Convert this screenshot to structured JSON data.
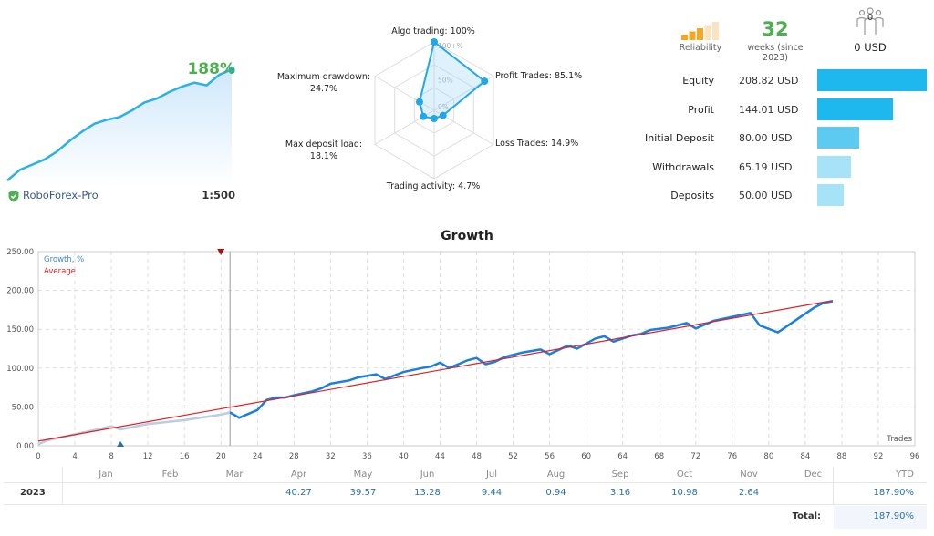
{
  "summary": {
    "growth_pct": "188%",
    "broker": "RoboForex-Pro",
    "leverage": "1:500",
    "sparkline": [
      0,
      8,
      12,
      16,
      22,
      30,
      37,
      43,
      46,
      48,
      53,
      59,
      62,
      67,
      71,
      74,
      72,
      80,
      84
    ]
  },
  "radar": {
    "ring_labels": [
      "100+%",
      "50%",
      "0%"
    ],
    "axes": [
      {
        "label": "Algo trading: 100%",
        "value": 100
      },
      {
        "label": "Profit Trades: 85.1%",
        "value": 85.1
      },
      {
        "label": "Loss Trades: 14.9%",
        "value": 14.9
      },
      {
        "label": "Trading activity: 4.7%",
        "value": 4.7
      },
      {
        "label_line1": "Max deposit load:",
        "label_line2": "18.1%",
        "value": 18.1
      },
      {
        "label_line1": "Maximum drawdown:",
        "label_line2": "24.7%",
        "value": 24.7
      }
    ]
  },
  "stats": {
    "reliability_label": "Reliability",
    "reliability_level": 2,
    "weeks": "32",
    "weeks_label": "weeks (since 2023)",
    "subscribers": "0",
    "subscribers_funds": "0 USD",
    "rows": [
      {
        "label": "Equity",
        "value": "208.82 USD",
        "amount": 208.82,
        "color": "#1eb8ee"
      },
      {
        "label": "Profit",
        "value": "144.01 USD",
        "amount": 144.01,
        "color": "#1eb8ee"
      },
      {
        "label": "Initial Deposit",
        "value": "80.00 USD",
        "amount": 80,
        "color": "#5ccaf1"
      },
      {
        "label": "Withdrawals",
        "value": "65.19 USD",
        "amount": 65.19,
        "color": "#a6e2f8"
      },
      {
        "label": "Deposits",
        "value": "50.00 USD",
        "amount": 50,
        "color": "#a6e2f8"
      }
    ]
  },
  "growth": {
    "title": "Growth",
    "legend": {
      "growth": "Growth, %",
      "average": "Average"
    },
    "xlabel": "Trades"
  },
  "chart_data": {
    "type": "line",
    "title": "Growth",
    "xlabel": "Trades",
    "xlim": [
      0,
      96
    ],
    "ylim": [
      0,
      250
    ],
    "x_ticks": [
      0,
      4,
      8,
      12,
      16,
      20,
      24,
      28,
      32,
      36,
      40,
      44,
      48,
      52,
      56,
      60,
      64,
      68,
      72,
      76,
      80,
      84,
      88,
      92,
      96
    ],
    "y_ticks": [
      "0.00",
      "50.00",
      "100.00",
      "150.00",
      "200.00",
      "250.00"
    ],
    "grid": true,
    "legend_position": "top-left",
    "series": [
      {
        "name": "Growth, %",
        "color": "#1a7fe0",
        "x": [
          0,
          1,
          8,
          9,
          12,
          16,
          20,
          21,
          22,
          24,
          25,
          26,
          27,
          28,
          30,
          31,
          32,
          34,
          35,
          37,
          38,
          40,
          42,
          43,
          44,
          45,
          47,
          48,
          49,
          50,
          51,
          53,
          55,
          56,
          58,
          59,
          61,
          62,
          63,
          65,
          66,
          67,
          69,
          71,
          72,
          74,
          76,
          78,
          79,
          81,
          85,
          86,
          87
        ],
        "y": [
          2,
          7,
          25,
          21,
          28,
          33,
          40,
          43,
          36,
          46,
          59,
          62,
          62,
          65,
          70,
          74,
          80,
          84,
          88,
          92,
          86,
          95,
          100,
          102,
          107,
          100,
          110,
          113,
          105,
          108,
          114,
          120,
          124,
          118,
          129,
          125,
          138,
          141,
          134,
          142,
          144,
          149,
          152,
          158,
          151,
          161,
          166,
          171,
          155,
          146,
          178,
          184,
          186
        ]
      },
      {
        "name": "Average",
        "color": "#e02020",
        "x": [
          0,
          87
        ],
        "y": [
          6,
          187
        ]
      }
    ],
    "markers": [
      {
        "type": "triangle-down",
        "x": 20,
        "color": "#b01010"
      },
      {
        "type": "triangle-up",
        "x": 9,
        "color": "#2a6fa8"
      }
    ],
    "divider_x": 21
  },
  "table": {
    "year": "2023",
    "months": [
      "Jan",
      "Feb",
      "Mar",
      "Apr",
      "May",
      "Jun",
      "Jul",
      "Aug",
      "Sep",
      "Oct",
      "Nov",
      "Dec"
    ],
    "values": [
      "",
      "",
      "",
      "40.27",
      "39.57",
      "13.28",
      "9.44",
      "0.94",
      "3.16",
      "10.98",
      "2.64",
      ""
    ],
    "ytd_label": "YTD",
    "ytd": "187.90%",
    "total_label": "Total:",
    "total": "187.90%"
  }
}
